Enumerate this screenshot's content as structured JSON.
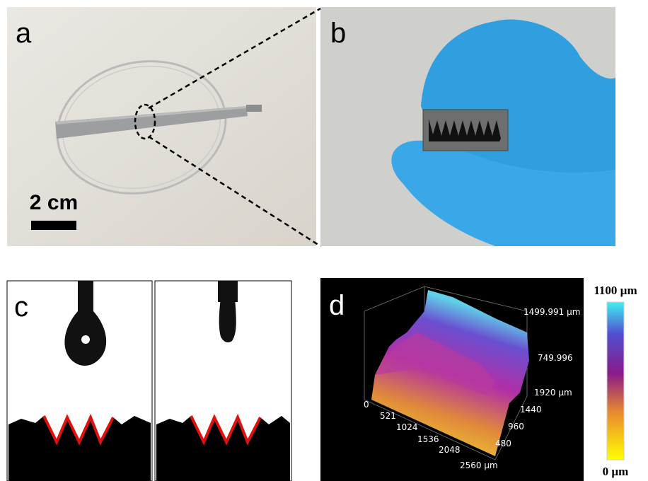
{
  "panels": {
    "a": {
      "label": "a",
      "scale_bar": "2 cm"
    },
    "b": {
      "label": "b"
    },
    "c": {
      "label": "c"
    },
    "d": {
      "label": "d",
      "z_labels": [
        "1499.991 µm",
        "749.996"
      ],
      "y_labels": [
        "1920 µm",
        "1440",
        "960",
        "480"
      ],
      "x_labels": [
        "0",
        "521",
        "1024",
        "1536",
        "2048",
        "2560 µm"
      ],
      "colorbar": {
        "max": "1100 µm",
        "min": "0 µm"
      }
    }
  }
}
